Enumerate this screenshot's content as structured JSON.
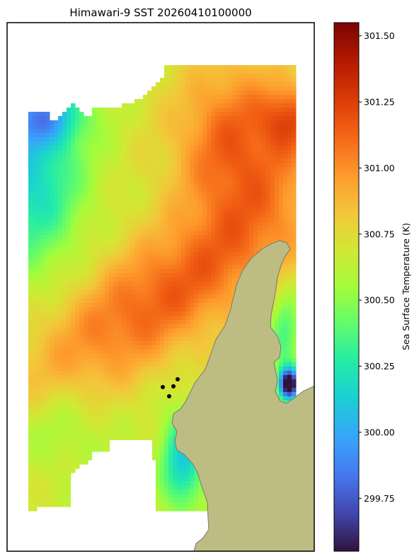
{
  "chart_data": {
    "type": "heatmap",
    "title": "Himawari-9 SST 20260410100000",
    "colorbar": {
      "label": "Sea Surface Temperature (K)",
      "range": [
        299.55,
        301.55
      ],
      "ticks": [
        "299.75",
        "300.00",
        "300.25",
        "300.50",
        "300.75",
        "301.00",
        "301.25",
        "301.50"
      ],
      "tick_values": [
        299.75,
        300.0,
        300.25,
        300.5,
        300.75,
        301.0,
        301.25,
        301.5
      ],
      "colormap": "turbo"
    },
    "land_color": "#bdbd83",
    "land_edge_color": "#777777",
    "station_points": 4
  }
}
